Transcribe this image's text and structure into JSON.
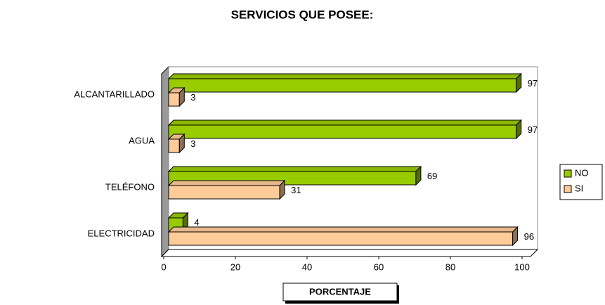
{
  "chart_data": {
    "type": "bar",
    "orientation": "horizontal",
    "title": "SERVICIOS QUE POSEE:",
    "x_label": "PORCENTAJE",
    "categories": [
      "ALCANTARILLADO",
      "AGUA",
      "TELÉFONO",
      "ELECTRICIDAD"
    ],
    "series": [
      {
        "name": "NO",
        "color": "#99cc00",
        "values": [
          97,
          97,
          69,
          4
        ]
      },
      {
        "name": "SI",
        "color": "#ffcc99",
        "values": [
          3,
          3,
          31,
          96
        ]
      }
    ],
    "xlim": [
      0,
      100
    ],
    "xticks": [
      0,
      20,
      40,
      60,
      80,
      100
    ],
    "legend": "right"
  }
}
